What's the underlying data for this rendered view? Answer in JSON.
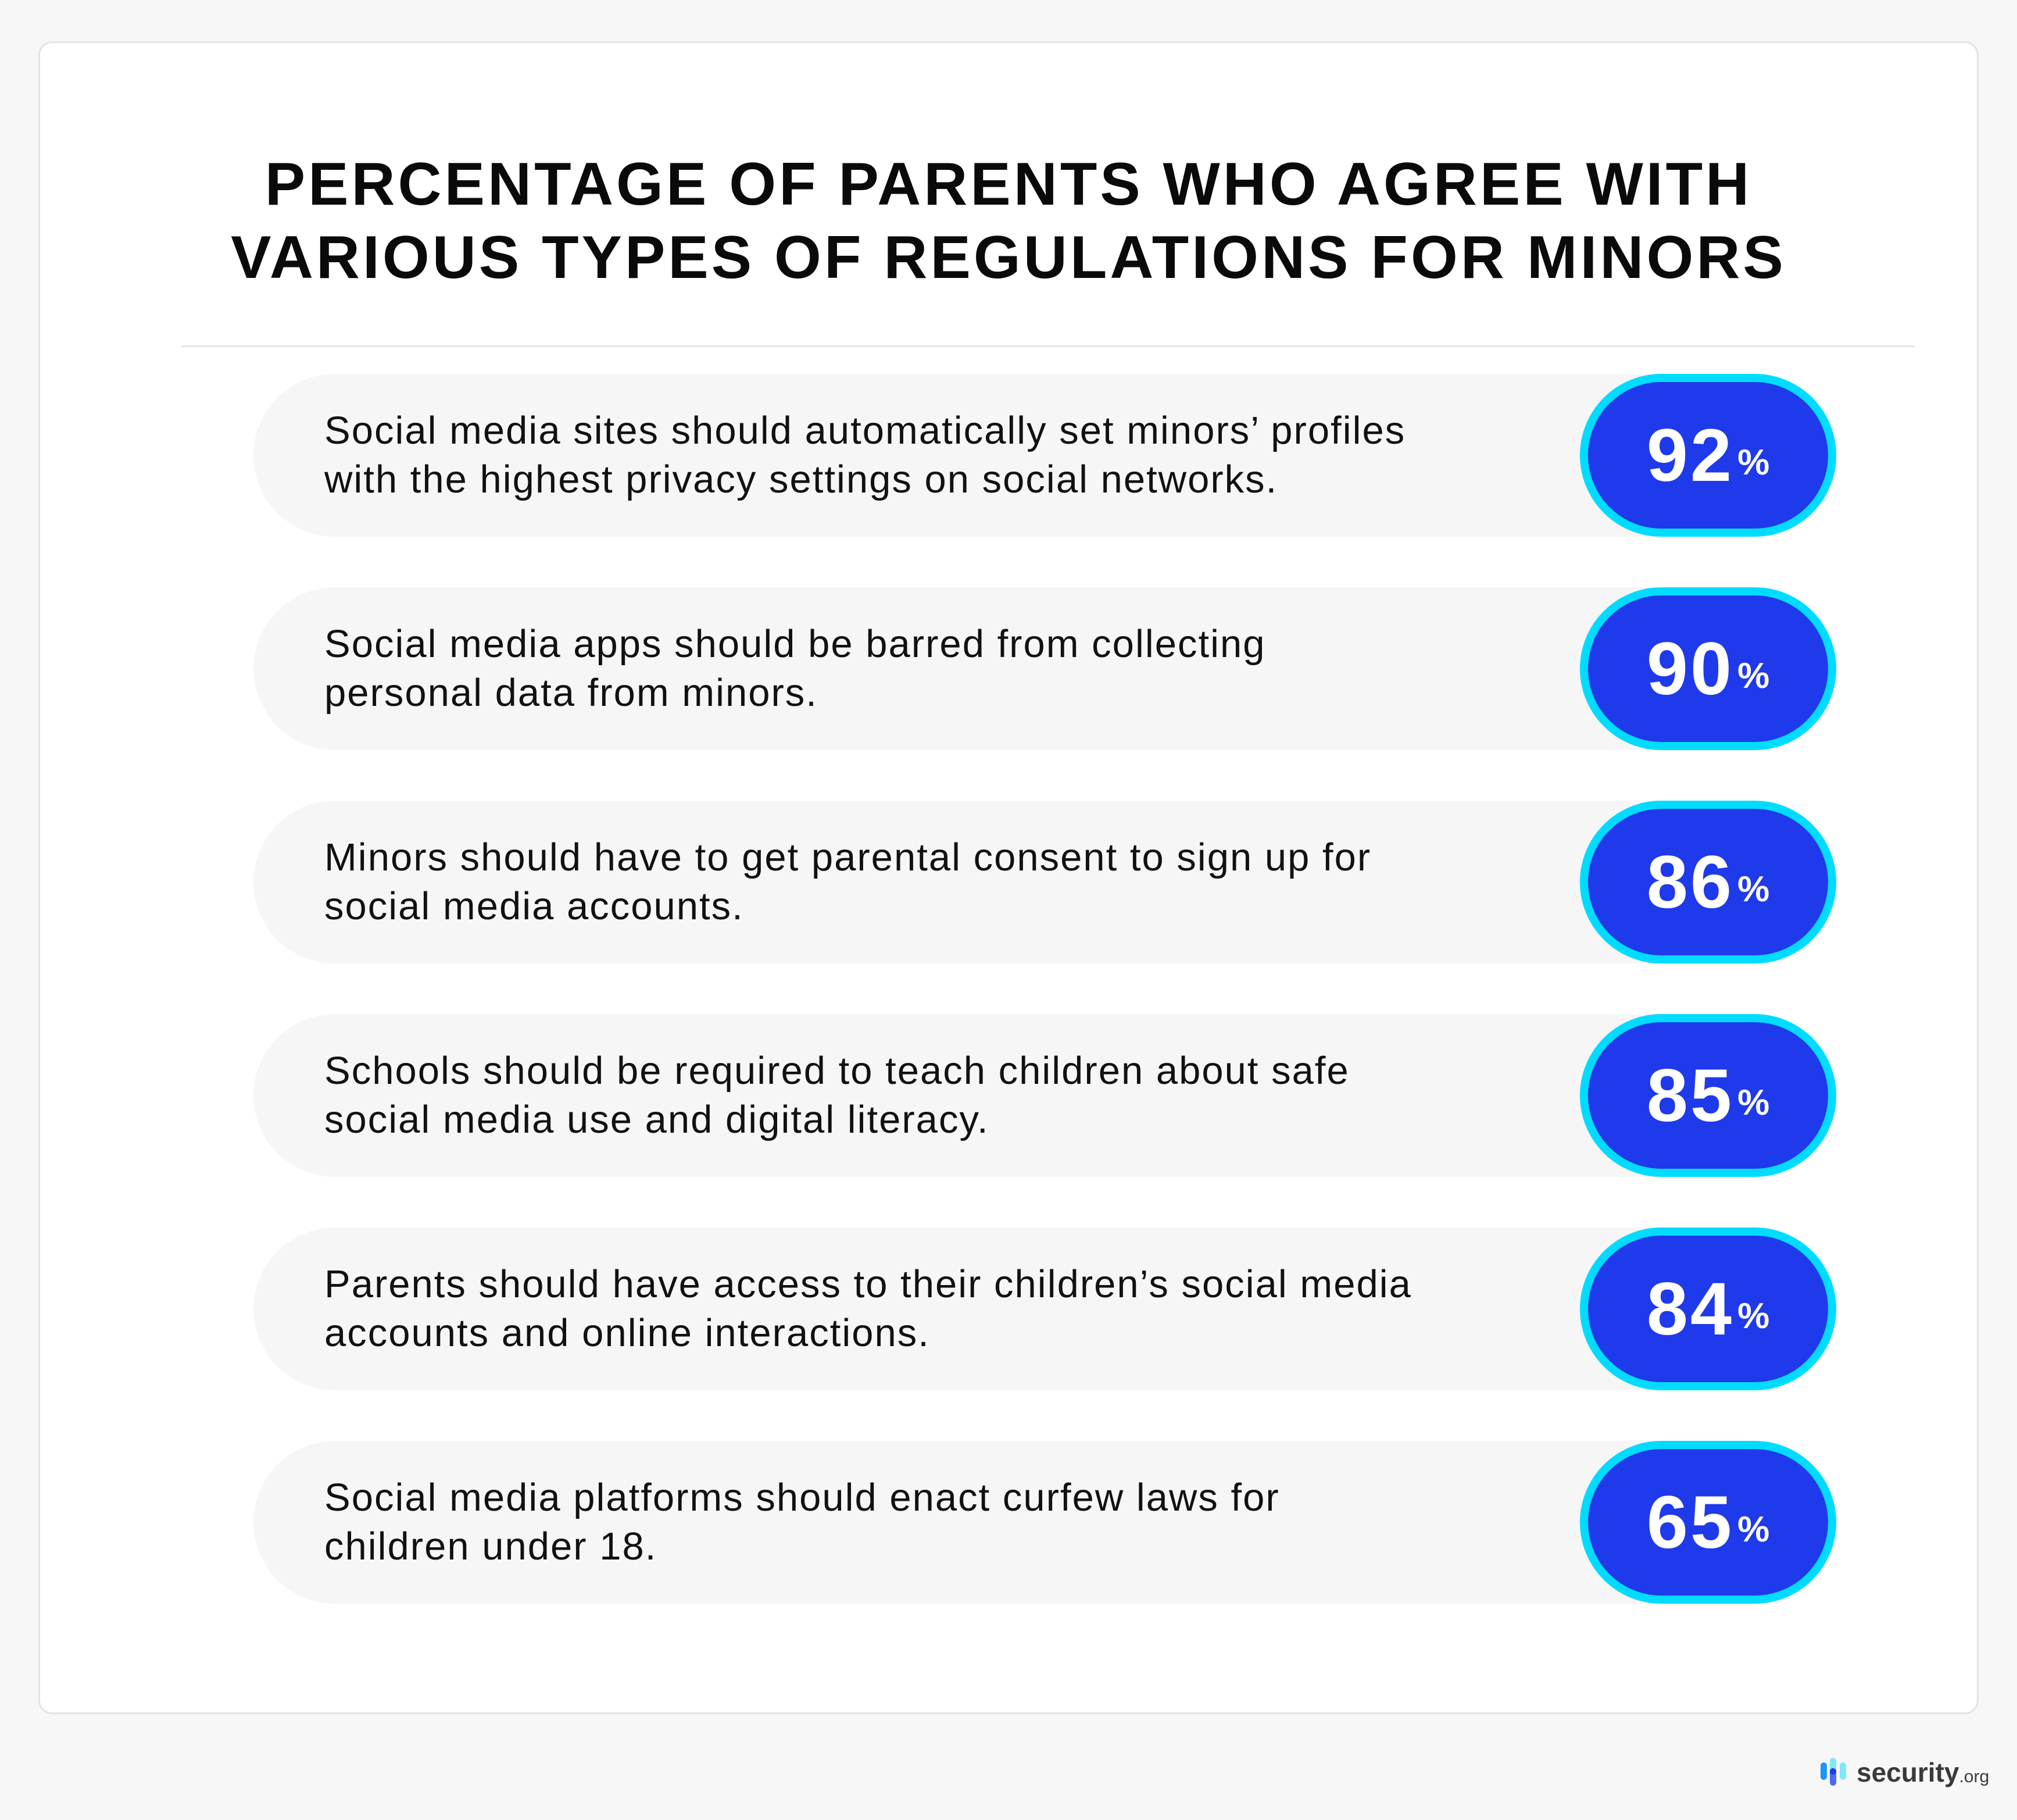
{
  "title_lines": [
    "PERCENTAGE OF PARENTS WHO AGREE WITH",
    "VARIOUS TYPES OF REGULATIONS FOR MINORS"
  ],
  "colors": {
    "pill_fill": "#1f3aeb",
    "pill_border": "#00dcff",
    "row_bg": "#f6f6f6"
  },
  "chart_data": {
    "type": "table",
    "title": "PERCENTAGE OF PARENTS WHO AGREE WITH VARIOUS TYPES OF REGULATIONS FOR MINORS",
    "rows": [
      {
        "lines": [
          "Social media sites should automatically set minors’ profiles",
          "with the highest privacy settings on social networks."
        ],
        "value": "92",
        "unit": "%"
      },
      {
        "lines": [
          "Social media apps should be barred from collecting",
          "personal data from minors."
        ],
        "value": "90",
        "unit": "%"
      },
      {
        "lines": [
          "Minors should have to get parental consent to sign up for",
          "social media accounts."
        ],
        "value": "86",
        "unit": "%"
      },
      {
        "lines": [
          "Schools should be required to teach children about safe",
          "social media use and digital literacy."
        ],
        "value": "85",
        "unit": "%"
      },
      {
        "lines": [
          "Parents should have access to their children’s social media",
          "accounts and online interactions."
        ],
        "value": "84",
        "unit": "%"
      },
      {
        "lines": [
          "Social media platforms should enact curfew laws for",
          "children under 18."
        ],
        "value": "65",
        "unit": "%"
      }
    ]
  },
  "logo": {
    "word": "security",
    "tld": ".org",
    "icon": "security-org-bars-logo"
  }
}
